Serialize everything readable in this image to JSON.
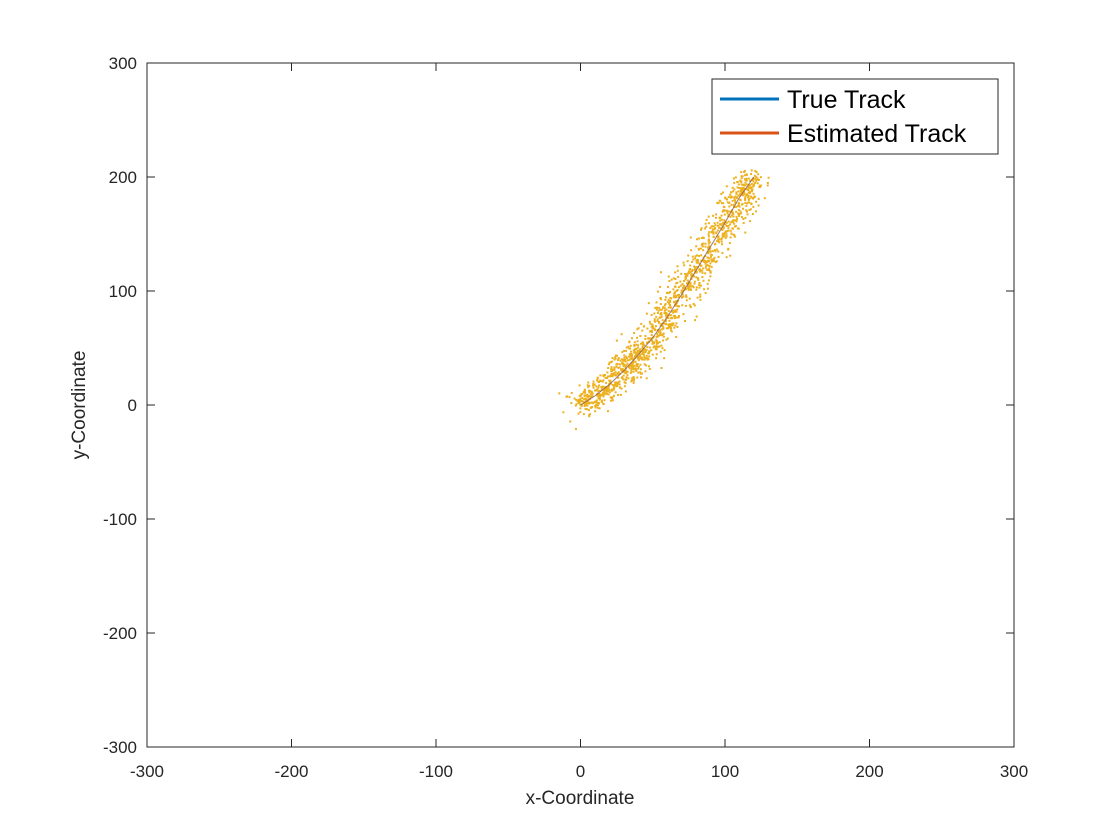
{
  "chart_data": {
    "type": "scatter",
    "title": "",
    "xlabel": "x-Coordinate",
    "ylabel": "y-Coordinate",
    "xlim": [
      -300,
      300
    ],
    "ylim": [
      -300,
      300
    ],
    "xticks": [
      -300,
      -200,
      -100,
      0,
      100,
      200,
      300
    ],
    "yticks": [
      -300,
      -200,
      -100,
      0,
      100,
      200,
      300
    ],
    "xtick_labels": [
      "-300",
      "-200",
      "-100",
      "0",
      "100",
      "200",
      "300"
    ],
    "ytick_labels": [
      "-300",
      "-200",
      "-100",
      "0",
      "100",
      "200",
      "300"
    ],
    "grid": false,
    "legend_position": "top-right",
    "legend": [
      {
        "label": "True Track",
        "color": "#0072BD"
      },
      {
        "label": "Estimated Track",
        "color": "#D95319"
      }
    ],
    "series": [
      {
        "name": "True Track",
        "color": "#0072BD",
        "x": [
          0,
          10,
          20,
          30,
          40,
          50,
          60,
          70,
          80,
          90,
          100,
          110,
          120
        ],
        "y": [
          0,
          8,
          18,
          30,
          44,
          59,
          77,
          97,
          118,
          139,
          160,
          182,
          200
        ]
      },
      {
        "name": "Estimated Track",
        "color": "#D95319",
        "x": [
          0,
          10,
          20,
          30,
          40,
          50,
          60,
          70,
          80,
          90,
          100,
          110,
          120
        ],
        "y": [
          0,
          8,
          18,
          30,
          44,
          59,
          77,
          97,
          118,
          139,
          160,
          182,
          200
        ]
      }
    ],
    "scatter_color": "#EDB120",
    "scatter_cloud": {
      "path_x": [
        0,
        10,
        20,
        30,
        40,
        50,
        60,
        70,
        80,
        90,
        100,
        110,
        120
      ],
      "path_y": [
        0,
        8,
        18,
        30,
        44,
        59,
        77,
        97,
        118,
        139,
        160,
        182,
        200
      ],
      "noise": 6
    }
  }
}
